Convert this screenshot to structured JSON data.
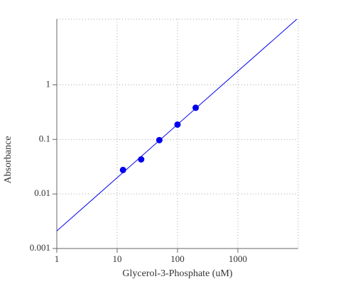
{
  "chart_data": {
    "type": "scatter",
    "x_label": "Glycerol-3-Phosphate (uM)",
    "y_label": "Absorbance",
    "xlog": true,
    "ylog": true,
    "grid": true,
    "xlim": [
      1,
      10000
    ],
    "ylim": [
      0.001,
      16
    ],
    "xticks": [
      1,
      10,
      100,
      1000
    ],
    "yticks": [
      0.001,
      0.01,
      0.1,
      1
    ],
    "series": [
      {
        "type": "scatter",
        "color": "#0000ee",
        "x": [
          12.5,
          25,
          50,
          100,
          200
        ],
        "values": [
          0.0275,
          0.043,
          0.097,
          0.187,
          0.38
        ]
      },
      {
        "type": "line",
        "color": "#0000ee",
        "x": [
          1,
          9500
        ],
        "values": [
          0.0021,
          16
        ]
      }
    ]
  }
}
